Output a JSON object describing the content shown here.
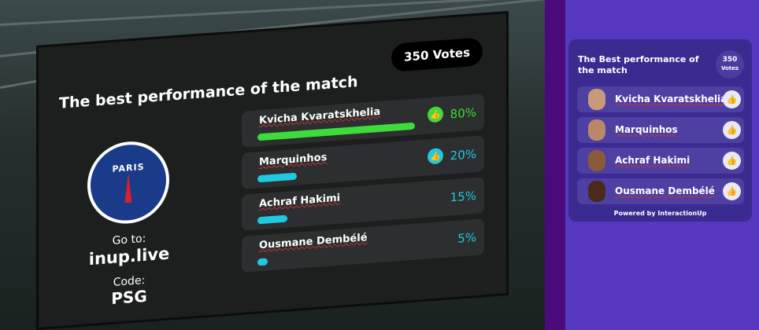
{
  "board": {
    "title": "The best performance of the match",
    "votes": "350 Votes",
    "logo_text": "PARIS",
    "goto_label": "Go to:",
    "goto_url": "inup.live",
    "code_label": "Code:",
    "code": "PSG",
    "options": [
      {
        "name": "Kvicha Kvaratskhelia",
        "percent": "80%",
        "value": 80,
        "color": "#3ddc3a",
        "icon": "thumbs-up-icon"
      },
      {
        "name": "Marquinhos",
        "percent": "20%",
        "value": 20,
        "color": "#22c8e0",
        "icon": "thumbs-up-icon"
      },
      {
        "name": "Achraf Hakimi",
        "percent": "15%",
        "value": 15,
        "color": "#22c8e0"
      },
      {
        "name": "Ousmane Dembélé",
        "percent": "5%",
        "value": 5,
        "color": "#22c8e0"
      }
    ]
  },
  "panel": {
    "title": "The Best performance of the match",
    "votes_count": "350",
    "votes_label": "Votes",
    "items": [
      {
        "name": "Kvicha Kvaratskhelia"
      },
      {
        "name": "Marquinhos"
      },
      {
        "name": "Achraf Hakimi"
      },
      {
        "name": "Ousmane Dembélé"
      }
    ],
    "powered": "Powered by InteractionUp"
  }
}
